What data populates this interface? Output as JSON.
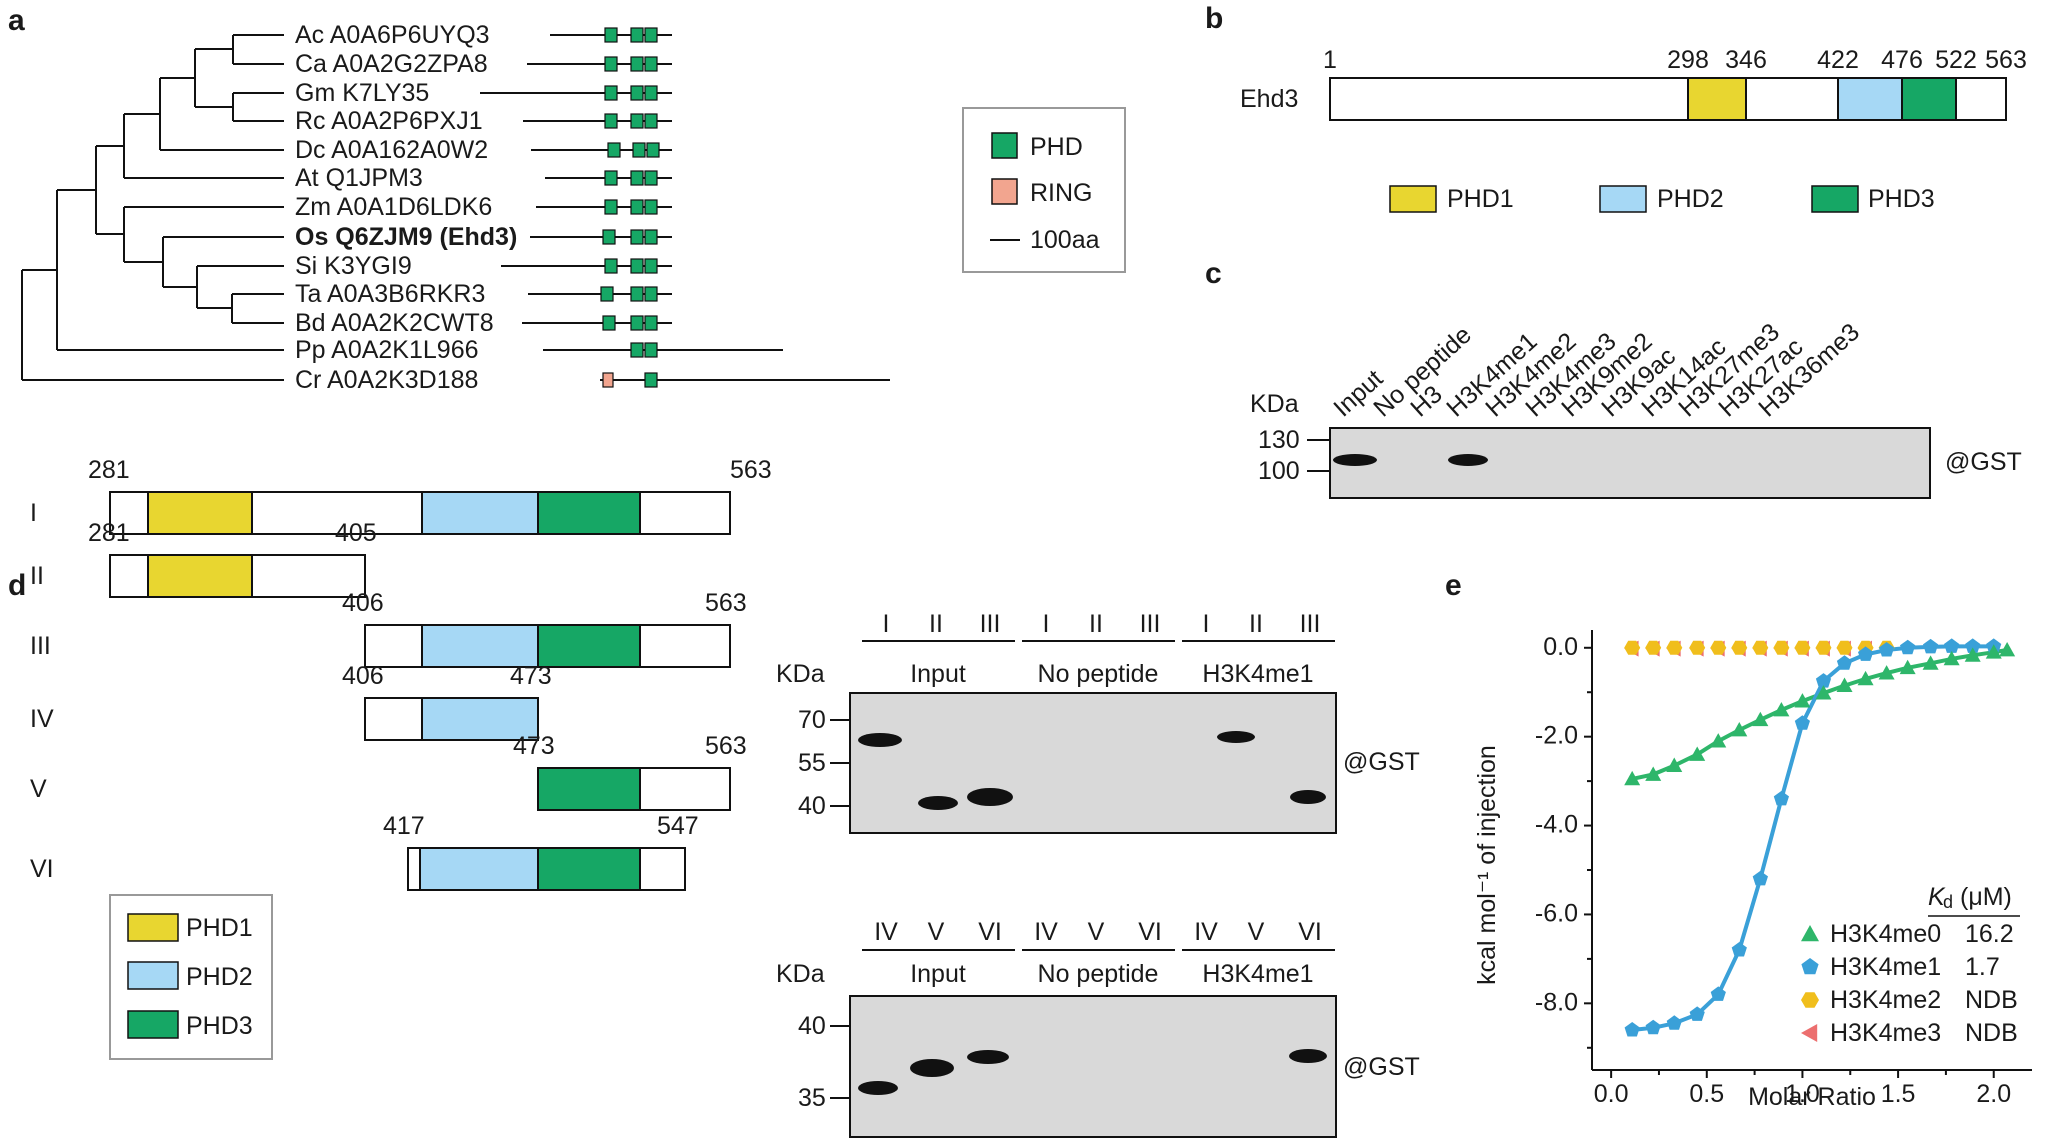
{
  "panels": {
    "a": "a",
    "b": "b",
    "c": "c",
    "d": "d",
    "e": "e"
  },
  "colors": {
    "PHD": "#16a765",
    "RING": "#f2a58f",
    "PHD1": "#e8d630",
    "PHD2": "#a6d8f5",
    "PHD3": "#16a765",
    "blot_bg": "#d9d9d9",
    "band": "#111111",
    "H3K4me0": "#2eb66a",
    "H3K4me1": "#3aa0d8",
    "H3K4me2": "#f0be1c",
    "H3K4me3": "#ec6f6f"
  },
  "panel_a": {
    "species": [
      {
        "label": "Ac A0A6P6UYQ3",
        "bold": false
      },
      {
        "label": "Ca A0A2G2ZPA8",
        "bold": false
      },
      {
        "label": "Gm K7LY35",
        "bold": false
      },
      {
        "label": "Rc A0A2P6PXJ1",
        "bold": false
      },
      {
        "label": "Dc A0A162A0W2",
        "bold": false
      },
      {
        "label": "At Q1JPM3",
        "bold": false
      },
      {
        "label": "Zm A0A1D6LDK6",
        "bold": false
      },
      {
        "label": "Os Q6ZJM9 (Ehd3)",
        "bold": true
      },
      {
        "label": "Si K3YGI9",
        "bold": false
      },
      {
        "label": "Ta A0A3B6RKR3",
        "bold": false
      },
      {
        "label": "Bd A0A2K2CWT8",
        "bold": false
      },
      {
        "label": "Pp A0A2K1L966",
        "bold": false
      },
      {
        "label": "Cr A0A2K3D188",
        "bold": false
      }
    ],
    "legend": {
      "phd": "PHD",
      "ring": "RING",
      "scale": "100aa"
    }
  },
  "panel_b": {
    "protein": "Ehd3",
    "positions": [
      "1",
      "298",
      "346",
      "422",
      "476",
      "522",
      "563"
    ],
    "legend": [
      "PHD1",
      "PHD2",
      "PHD3"
    ]
  },
  "panel_c": {
    "kda_label": "KDa",
    "markers": [
      "130",
      "100"
    ],
    "lanes": [
      "Input",
      "No peptide",
      "H3",
      "H3K4me1",
      "H3K4me2",
      "H3K4me3",
      "H3K9me2",
      "H3K9ac",
      "H3K14ac",
      "H3K27me3",
      "H3K27ac",
      "H3K36me3"
    ],
    "antibody": "@GST"
  },
  "panel_d": {
    "constructs": [
      {
        "id": "I",
        "start": "281",
        "end": "563"
      },
      {
        "id": "II",
        "start": "281",
        "end": "405"
      },
      {
        "id": "III",
        "start": "406",
        "end": "563"
      },
      {
        "id": "IV",
        "start": "406",
        "end": "473"
      },
      {
        "id": "V",
        "start": "473",
        "end": "563"
      },
      {
        "id": "VI",
        "start": "417",
        "end": "547"
      }
    ],
    "legend": [
      "PHD1",
      "PHD2",
      "PHD3"
    ],
    "blot1": {
      "lanes": [
        "I",
        "II",
        "III",
        "I",
        "II",
        "III",
        "I",
        "II",
        "III"
      ],
      "groups": [
        "Input",
        "No peptide",
        "H3K4me1"
      ],
      "kda_label": "KDa",
      "markers": [
        "70",
        "55",
        "40"
      ],
      "antibody": "@GST"
    },
    "blot2": {
      "lanes": [
        "IV",
        "V",
        "VI",
        "IV",
        "V",
        "VI",
        "IV",
        "V",
        "VI"
      ],
      "groups": [
        "Input",
        "No peptide",
        "H3K4me1"
      ],
      "kda_label": "KDa",
      "markers": [
        "40",
        "35"
      ],
      "antibody": "@GST"
    }
  },
  "chart_data": {
    "type": "scatter",
    "xlabel": "Molar Ratio",
    "ylabel": "kcal mol⁻¹ of injection",
    "xlim": [
      -0.1,
      2.2
    ],
    "ylim": [
      -9.5,
      0.4
    ],
    "xticks": [
      "0.0",
      "0.5",
      "1.0",
      "1.5",
      "2.0"
    ],
    "yticks": [
      "0.0",
      "-2.0",
      "-4.0",
      "-6.0",
      "-8.0"
    ],
    "legend_header": {
      "kd": "K",
      "kd_sub": "d",
      "unit": "(μM)"
    },
    "series": [
      {
        "name": "H3K4me0",
        "kd": "16.2",
        "marker": "triangle",
        "x": [
          0.11,
          0.22,
          0.33,
          0.45,
          0.56,
          0.67,
          0.78,
          0.89,
          1.0,
          1.11,
          1.22,
          1.33,
          1.44,
          1.55,
          1.67,
          1.78,
          1.89,
          2.0,
          2.07
        ],
        "y": [
          -2.95,
          -2.85,
          -2.65,
          -2.4,
          -2.1,
          -1.85,
          -1.62,
          -1.4,
          -1.2,
          -1.02,
          -0.85,
          -0.7,
          -0.57,
          -0.45,
          -0.35,
          -0.25,
          -0.17,
          -0.1,
          -0.05
        ]
      },
      {
        "name": "H3K4me1",
        "kd": "1.7",
        "marker": "pentagon",
        "x": [
          0.11,
          0.22,
          0.33,
          0.45,
          0.56,
          0.67,
          0.78,
          0.89,
          1.0,
          1.11,
          1.22,
          1.33,
          1.44,
          1.55,
          1.67,
          1.78,
          1.89,
          2.0
        ],
        "y": [
          -8.6,
          -8.55,
          -8.45,
          -8.25,
          -7.8,
          -6.8,
          -5.2,
          -3.4,
          -1.7,
          -0.75,
          -0.35,
          -0.15,
          -0.05,
          0.0,
          0.02,
          0.03,
          0.03,
          0.03
        ]
      },
      {
        "name": "H3K4me2",
        "kd": "NDB",
        "marker": "hexagon",
        "x": [
          0.11,
          0.22,
          0.33,
          0.45,
          0.56,
          0.67,
          0.78,
          0.89,
          1.0,
          1.11,
          1.22,
          1.33,
          1.44
        ],
        "y": [
          0,
          0,
          0,
          0,
          0,
          0,
          0,
          0,
          0,
          0,
          0,
          0,
          0
        ]
      },
      {
        "name": "H3K4me3",
        "kd": "NDB",
        "marker": "left-triangle",
        "x": [
          0.11,
          0.22,
          0.33,
          0.45,
          0.56,
          0.67,
          0.78,
          0.89,
          1.0,
          1.11,
          1.22,
          1.33
        ],
        "y": [
          -0.02,
          -0.02,
          -0.02,
          -0.02,
          -0.02,
          -0.02,
          -0.02,
          -0.02,
          -0.02,
          -0.02,
          -0.02,
          -0.02
        ]
      }
    ]
  }
}
